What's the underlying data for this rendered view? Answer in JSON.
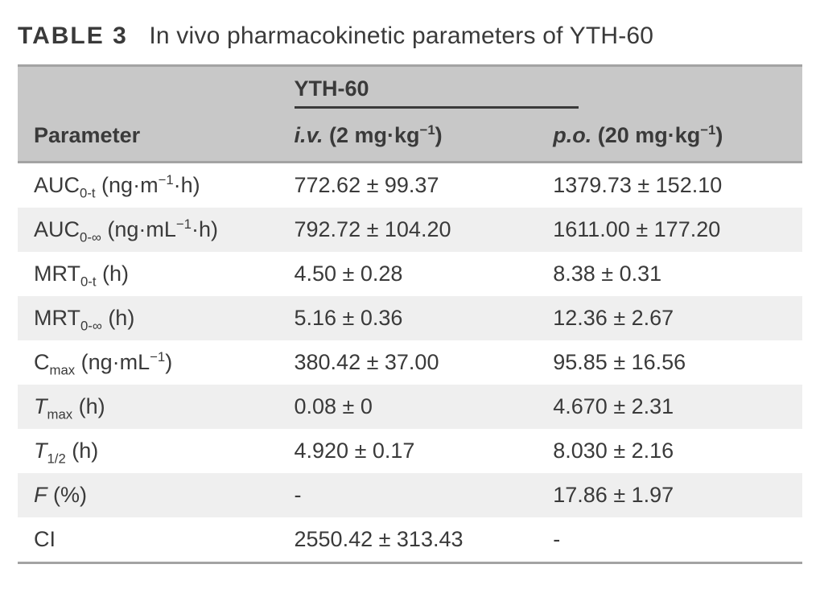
{
  "caption": {
    "label": "TABLE 3",
    "text": "In vivo pharmacokinetic parameters of YTH-60"
  },
  "table": {
    "type": "table",
    "background_color": "#ffffff",
    "header_bg": "#c8c8c8",
    "row_alt_bg": "#efefef",
    "border_color": "#a3a3a3",
    "text_color": "#3a3a3a",
    "label_fontsize": 27,
    "caption_fontsize": 30,
    "column_widths_pct": [
      34,
      33,
      33
    ],
    "group_title": "YTH-60",
    "columns": [
      {
        "key": "parameter",
        "label_html": "Parameter",
        "align": "left"
      },
      {
        "key": "iv",
        "label_html": "<span class='ital'>i.v.</span> (2 mg·kg<span class='sup'>−1</span>)",
        "align": "left"
      },
      {
        "key": "po",
        "label_html": "<span class='ital'>p.o.</span> (20 mg·kg<span class='sup'>−1</span>)",
        "align": "left"
      }
    ],
    "rows": [
      {
        "param_html": "AUC<span class='sub'>0-t</span> (ng·m<span class='sup'>−1</span>·h)",
        "iv": "772.62 ± 99.37",
        "po": "1379.73 ± 152.10"
      },
      {
        "param_html": "AUC<span class='sub'>0-∞</span> (ng·mL<span class='sup'>−1</span>·h)",
        "iv": "792.72 ± 104.20",
        "po": "1611.00 ± 177.20"
      },
      {
        "param_html": "MRT<span class='sub'>0-t</span> (h)",
        "iv": "4.50 ± 0.28",
        "po": "8.38 ± 0.31"
      },
      {
        "param_html": "MRT<span class='sub'>0-∞</span> (h)",
        "iv": "5.16 ± 0.36",
        "po": "12.36 ± 2.67"
      },
      {
        "param_html": "C<span class='sub'>max</span> (ng·mL<span class='sup'>−1</span>)",
        "iv": "380.42 ± 37.00",
        "po": "95.85 ± 16.56"
      },
      {
        "param_html": "<span class='ital'>T</span><span class='sub'>max</span> (h)",
        "iv": "0.08 ± 0",
        "po": "4.670 ± 2.31"
      },
      {
        "param_html": "<span class='ital'>T</span><span class='sub'>1/2</span> (h)",
        "iv": "4.920 ± 0.17",
        "po": "8.030 ± 2.16"
      },
      {
        "param_html": "<span class='ital'>F</span> (%)",
        "iv": "-",
        "po": "17.86 ± 1.97"
      },
      {
        "param_html": "CI",
        "iv": "2550.42 ± 313.43",
        "po": "-"
      }
    ]
  }
}
